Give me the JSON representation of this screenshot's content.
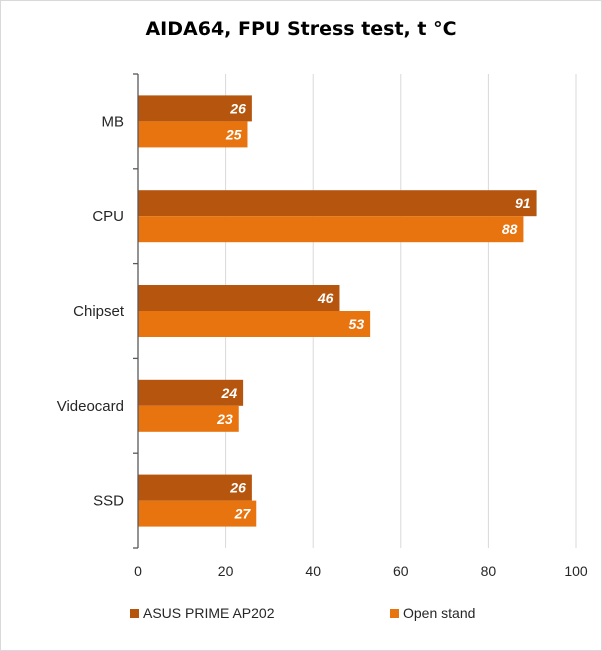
{
  "chart_data": {
    "type": "bar",
    "orientation": "horizontal",
    "title": "AIDA64, FPU Stress test, t °C",
    "categories": [
      "MB",
      "CPU",
      "Chipset",
      "Videocard",
      "SSD"
    ],
    "series": [
      {
        "name": "ASUS PRIME AP202",
        "color": "#b5550e",
        "values": [
          26,
          91,
          46,
          24,
          26
        ]
      },
      {
        "name": "Open stand",
        "color": "#e8740f",
        "values": [
          25,
          88,
          53,
          23,
          27
        ]
      }
    ],
    "xlim": [
      0,
      100
    ],
    "xticks": [
      0,
      20,
      40,
      60,
      80,
      100
    ],
    "xlabel": "",
    "ylabel": "",
    "grid": true,
    "legend_position": "bottom",
    "data_labels": true
  }
}
